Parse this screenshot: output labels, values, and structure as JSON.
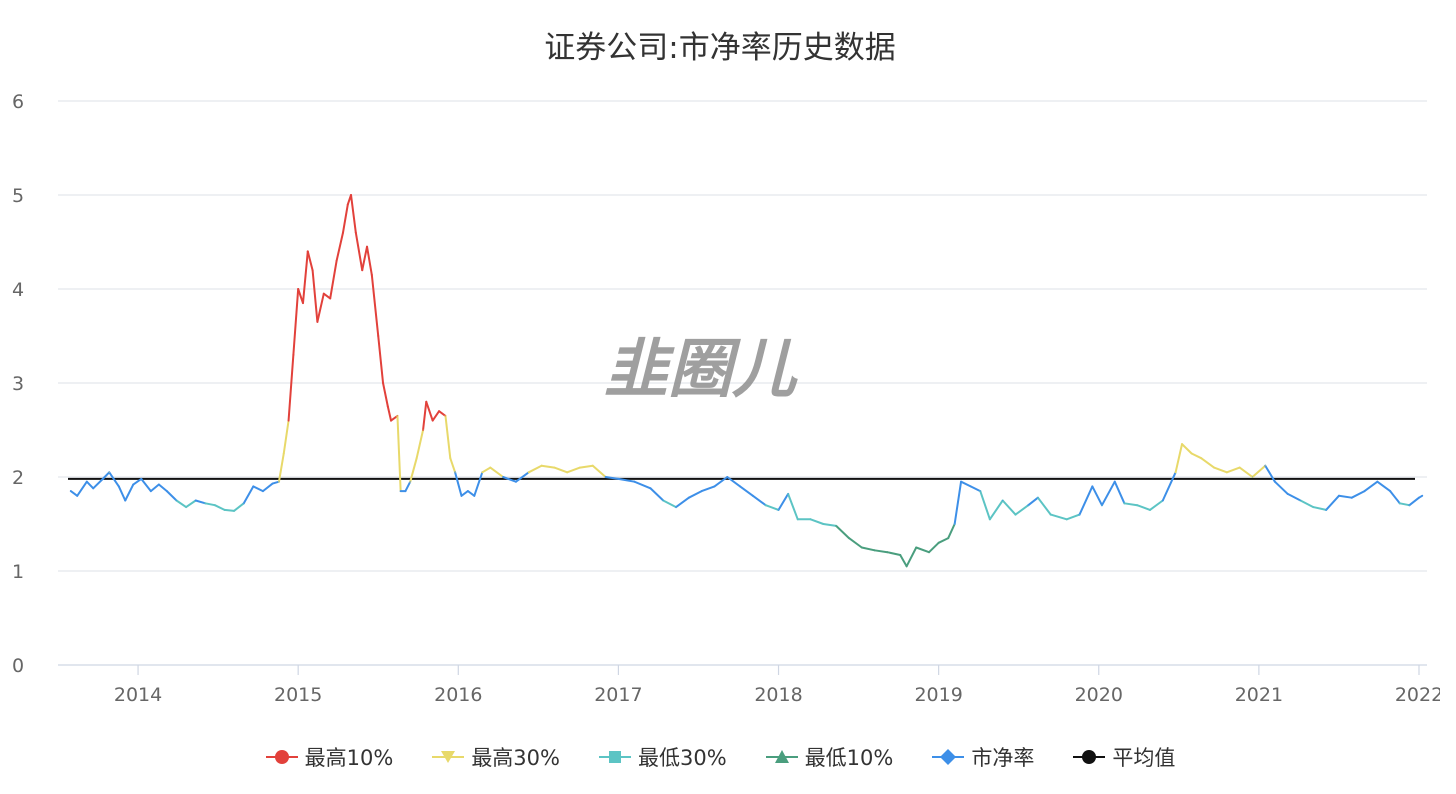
{
  "chart_data": {
    "type": "line",
    "title": "证券公司:市净率历史数据",
    "watermark": "韭圈儿",
    "y_ticks": [
      0,
      1,
      2,
      3,
      4,
      5,
      6
    ],
    "ylim": [
      0,
      6
    ],
    "x_ticks": [
      "2014",
      "2015",
      "2016",
      "2017",
      "2018",
      "2019",
      "2020",
      "2021",
      "2022"
    ],
    "xlim": [
      2013.5,
      2022.05
    ],
    "grid": true,
    "legend_position": "bottom",
    "average": 1.98,
    "series": [
      {
        "name": "最高10%",
        "color": "#e2413b",
        "marker": "circle"
      },
      {
        "name": "最高30%",
        "color": "#e8d96a",
        "marker": "triangle-down"
      },
      {
        "name": "最低30%",
        "color": "#5cc4c4",
        "marker": "square"
      },
      {
        "name": "最低10%",
        "color": "#4a9e7e",
        "marker": "triangle-up"
      },
      {
        "name": "市净率",
        "color": "#3d8fe8",
        "marker": "diamond"
      },
      {
        "name": "平均值",
        "color": "#111111",
        "marker": "circle"
      }
    ],
    "pb_points": [
      [
        2013.58,
        1.85
      ],
      [
        2013.62,
        1.8
      ],
      [
        2013.68,
        1.95
      ],
      [
        2013.72,
        1.88
      ],
      [
        2013.78,
        1.98
      ],
      [
        2013.82,
        2.05
      ],
      [
        2013.88,
        1.9
      ],
      [
        2013.92,
        1.75
      ],
      [
        2013.97,
        1.92
      ],
      [
        2014.02,
        1.98
      ],
      [
        2014.08,
        1.85
      ],
      [
        2014.13,
        1.92
      ],
      [
        2014.18,
        1.85
      ],
      [
        2014.24,
        1.75
      ],
      [
        2014.3,
        1.68
      ],
      [
        2014.36,
        1.75
      ],
      [
        2014.42,
        1.72
      ],
      [
        2014.48,
        1.7
      ],
      [
        2014.54,
        1.65
      ],
      [
        2014.6,
        1.64
      ],
      [
        2014.66,
        1.72
      ],
      [
        2014.72,
        1.9
      ],
      [
        2014.78,
        1.85
      ],
      [
        2014.84,
        1.93
      ],
      [
        2014.88,
        1.95
      ],
      [
        2014.91,
        2.25
      ],
      [
        2014.94,
        2.6
      ],
      [
        2014.97,
        3.3
      ],
      [
        2015.0,
        4.0
      ],
      [
        2015.03,
        3.85
      ],
      [
        2015.06,
        4.4
      ],
      [
        2015.09,
        4.2
      ],
      [
        2015.12,
        3.65
      ],
      [
        2015.16,
        3.95
      ],
      [
        2015.2,
        3.9
      ],
      [
        2015.24,
        4.3
      ],
      [
        2015.28,
        4.6
      ],
      [
        2015.31,
        4.9
      ],
      [
        2015.33,
        5.0
      ],
      [
        2015.36,
        4.6
      ],
      [
        2015.4,
        4.2
      ],
      [
        2015.43,
        4.45
      ],
      [
        2015.46,
        4.15
      ],
      [
        2015.5,
        3.5
      ],
      [
        2015.53,
        3.0
      ],
      [
        2015.56,
        2.75
      ],
      [
        2015.58,
        2.6
      ],
      [
        2015.62,
        2.65
      ],
      [
        2015.64,
        1.85
      ],
      [
        2015.67,
        1.85
      ],
      [
        2015.7,
        1.95
      ],
      [
        2015.74,
        2.2
      ],
      [
        2015.78,
        2.5
      ],
      [
        2015.8,
        2.8
      ],
      [
        2015.84,
        2.6
      ],
      [
        2015.88,
        2.7
      ],
      [
        2015.92,
        2.65
      ],
      [
        2015.95,
        2.2
      ],
      [
        2015.98,
        2.05
      ],
      [
        2016.02,
        1.8
      ],
      [
        2016.06,
        1.85
      ],
      [
        2016.1,
        1.8
      ],
      [
        2016.15,
        2.05
      ],
      [
        2016.2,
        2.1
      ],
      [
        2016.28,
        2.0
      ],
      [
        2016.36,
        1.95
      ],
      [
        2016.44,
        2.05
      ],
      [
        2016.52,
        2.12
      ],
      [
        2016.6,
        2.1
      ],
      [
        2016.68,
        2.05
      ],
      [
        2016.76,
        2.1
      ],
      [
        2016.84,
        2.12
      ],
      [
        2016.92,
        2.0
      ],
      [
        2017.0,
        1.98
      ],
      [
        2017.1,
        1.95
      ],
      [
        2017.2,
        1.88
      ],
      [
        2017.28,
        1.75
      ],
      [
        2017.36,
        1.68
      ],
      [
        2017.44,
        1.78
      ],
      [
        2017.52,
        1.85
      ],
      [
        2017.6,
        1.9
      ],
      [
        2017.68,
        2.0
      ],
      [
        2017.76,
        1.9
      ],
      [
        2017.84,
        1.8
      ],
      [
        2017.92,
        1.7
      ],
      [
        2018.0,
        1.65
      ],
      [
        2018.06,
        1.82
      ],
      [
        2018.12,
        1.55
      ],
      [
        2018.2,
        1.55
      ],
      [
        2018.28,
        1.5
      ],
      [
        2018.36,
        1.48
      ],
      [
        2018.44,
        1.35
      ],
      [
        2018.52,
        1.25
      ],
      [
        2018.6,
        1.22
      ],
      [
        2018.68,
        1.2
      ],
      [
        2018.76,
        1.17
      ],
      [
        2018.8,
        1.05
      ],
      [
        2018.86,
        1.25
      ],
      [
        2018.94,
        1.2
      ],
      [
        2019.0,
        1.3
      ],
      [
        2019.06,
        1.35
      ],
      [
        2019.1,
        1.5
      ],
      [
        2019.14,
        1.95
      ],
      [
        2019.2,
        1.9
      ],
      [
        2019.26,
        1.85
      ],
      [
        2019.32,
        1.55
      ],
      [
        2019.4,
        1.75
      ],
      [
        2019.48,
        1.6
      ],
      [
        2019.56,
        1.7
      ],
      [
        2019.62,
        1.78
      ],
      [
        2019.7,
        1.6
      ],
      [
        2019.8,
        1.55
      ],
      [
        2019.88,
        1.6
      ],
      [
        2019.96,
        1.9
      ],
      [
        2020.02,
        1.7
      ],
      [
        2020.1,
        1.95
      ],
      [
        2020.16,
        1.72
      ],
      [
        2020.24,
        1.7
      ],
      [
        2020.32,
        1.65
      ],
      [
        2020.4,
        1.75
      ],
      [
        2020.48,
        2.05
      ],
      [
        2020.52,
        2.35
      ],
      [
        2020.58,
        2.25
      ],
      [
        2020.64,
        2.2
      ],
      [
        2020.72,
        2.1
      ],
      [
        2020.8,
        2.05
      ],
      [
        2020.88,
        2.1
      ],
      [
        2020.96,
        2.0
      ],
      [
        2021.04,
        2.12
      ],
      [
        2021.1,
        1.95
      ],
      [
        2021.18,
        1.82
      ],
      [
        2021.26,
        1.75
      ],
      [
        2021.34,
        1.68
      ],
      [
        2021.42,
        1.65
      ],
      [
        2021.5,
        1.8
      ],
      [
        2021.58,
        1.78
      ],
      [
        2021.66,
        1.85
      ],
      [
        2021.74,
        1.95
      ],
      [
        2021.82,
        1.85
      ],
      [
        2021.88,
        1.72
      ],
      [
        2021.94,
        1.7
      ],
      [
        2022.0,
        1.78
      ],
      [
        2022.02,
        1.8
      ]
    ]
  }
}
